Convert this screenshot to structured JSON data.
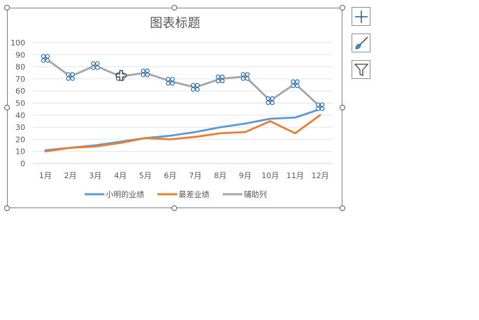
{
  "chart_data": {
    "type": "line",
    "title": "图表标题",
    "categories": [
      "1月",
      "2月",
      "3月",
      "4月",
      "5月",
      "6月",
      "7月",
      "8月",
      "9月",
      "10月",
      "11月",
      "12月"
    ],
    "ylim": [
      0,
      100
    ],
    "yticks": [
      0,
      10,
      20,
      30,
      40,
      50,
      60,
      70,
      80,
      90,
      100
    ],
    "grid": true,
    "legend": "bottom",
    "series": [
      {
        "name": "小明的业绩",
        "color": "#5b9bd5",
        "values": [
          11,
          13,
          15,
          18,
          21,
          23,
          26,
          30,
          33,
          37,
          38,
          45
        ]
      },
      {
        "name": "最差业绩",
        "color": "#ed7d31",
        "values": [
          10,
          13,
          14,
          17,
          21,
          20,
          22,
          25,
          26,
          35,
          25,
          40
        ]
      },
      {
        "name": "辅助列",
        "color": "#a5a5a5",
        "selected": true,
        "values": [
          87,
          72,
          81,
          72,
          75,
          68,
          63,
          70,
          72,
          52,
          66,
          47
        ]
      }
    ]
  },
  "side_buttons": {
    "elements": "plus-icon",
    "styles": "brush-icon",
    "filters": "funnel-icon"
  }
}
